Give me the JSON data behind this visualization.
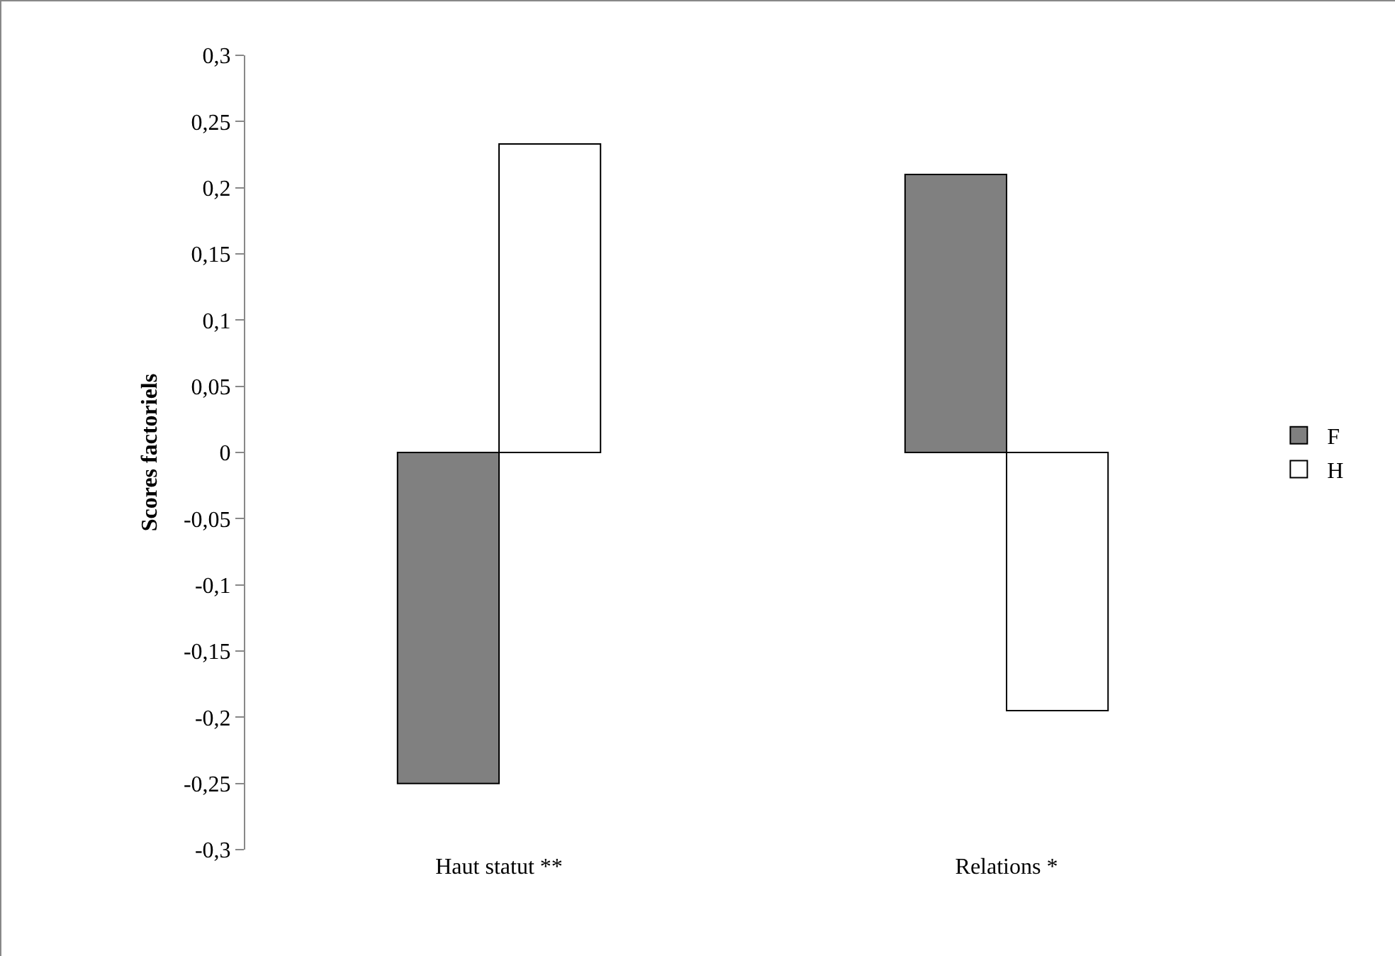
{
  "chart_data": {
    "type": "bar",
    "ylabel": "Scores factoriels",
    "categories": [
      "Haut statut **",
      "Relations *"
    ],
    "series": [
      {
        "name": "F",
        "color": "#808080",
        "values": [
          -0.25,
          0.21
        ]
      },
      {
        "name": "H",
        "color": "#ffffff",
        "values": [
          0.233,
          -0.195
        ]
      }
    ],
    "ylim": [
      -0.3,
      0.3
    ],
    "yticks": [
      {
        "value": -0.3,
        "label": "-0,3"
      },
      {
        "value": -0.25,
        "label": "-0,25"
      },
      {
        "value": -0.2,
        "label": "-0,2"
      },
      {
        "value": -0.15,
        "label": "-0,15"
      },
      {
        "value": -0.1,
        "label": "-0,1"
      },
      {
        "value": -0.05,
        "label": "-0,05"
      },
      0,
      {
        "value": 0.05,
        "label": "0,05"
      },
      {
        "value": 0.1,
        "label": "0,1"
      },
      {
        "value": 0.15,
        "label": "0,15"
      },
      {
        "value": 0.2,
        "label": "0,2"
      },
      {
        "value": 0.25,
        "label": "0,25"
      },
      {
        "value": 0.3,
        "label": "0,3"
      }
    ],
    "grid": false,
    "legend": "right"
  }
}
